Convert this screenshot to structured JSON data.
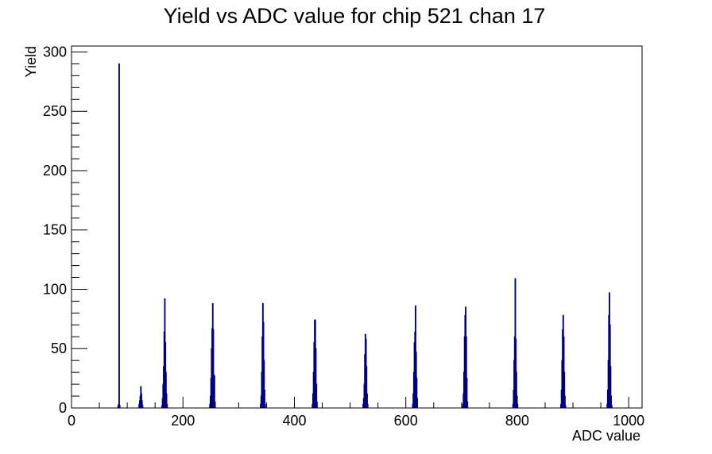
{
  "chart_data": {
    "type": "bar",
    "title": "Yield vs ADC value for chip 521 chan 17",
    "xlabel": "ADC value",
    "ylabel": "Yield",
    "xlim": [
      0,
      1024
    ],
    "ylim": [
      0,
      305
    ],
    "x_ticks": [
      0,
      200,
      400,
      600,
      800,
      1000
    ],
    "y_ticks": [
      0,
      50,
      100,
      150,
      200,
      250,
      300
    ],
    "grid": false,
    "legend": "none",
    "colors": {
      "line": "#000080",
      "frame": "#000000"
    },
    "series": [
      {
        "points": [
          [
            83,
            1
          ],
          [
            84,
            3
          ],
          [
            85,
            290
          ],
          [
            86,
            2
          ],
          [
            121,
            3
          ],
          [
            122,
            6
          ],
          [
            123,
            10
          ],
          [
            124,
            18
          ],
          [
            125,
            12
          ],
          [
            126,
            6
          ],
          [
            127,
            2
          ],
          [
            162,
            2
          ],
          [
            163,
            8
          ],
          [
            164,
            20
          ],
          [
            165,
            35
          ],
          [
            166,
            64
          ],
          [
            167,
            92
          ],
          [
            168,
            55
          ],
          [
            169,
            30
          ],
          [
            170,
            12
          ],
          [
            171,
            3
          ],
          [
            248,
            3
          ],
          [
            249,
            10
          ],
          [
            250,
            25
          ],
          [
            251,
            50
          ],
          [
            252,
            67
          ],
          [
            253,
            88
          ],
          [
            254,
            66
          ],
          [
            255,
            28
          ],
          [
            256,
            27
          ],
          [
            257,
            5
          ],
          [
            339,
            3
          ],
          [
            340,
            10
          ],
          [
            341,
            30
          ],
          [
            342,
            60
          ],
          [
            343,
            88
          ],
          [
            344,
            72
          ],
          [
            345,
            40
          ],
          [
            346,
            15
          ],
          [
            347,
            3
          ],
          [
            432,
            3
          ],
          [
            433,
            12
          ],
          [
            434,
            30
          ],
          [
            435,
            55
          ],
          [
            436,
            74
          ],
          [
            437,
            74
          ],
          [
            438,
            50
          ],
          [
            439,
            20
          ],
          [
            440,
            5
          ],
          [
            523,
            3
          ],
          [
            524,
            8
          ],
          [
            525,
            20
          ],
          [
            526,
            45
          ],
          [
            527,
            62
          ],
          [
            528,
            58
          ],
          [
            529,
            35
          ],
          [
            530,
            12
          ],
          [
            531,
            3
          ],
          [
            612,
            3
          ],
          [
            613,
            12
          ],
          [
            614,
            30
          ],
          [
            615,
            55
          ],
          [
            616,
            64
          ],
          [
            617,
            86
          ],
          [
            618,
            47
          ],
          [
            619,
            25
          ],
          [
            620,
            8
          ],
          [
            702,
            3
          ],
          [
            703,
            12
          ],
          [
            704,
            30
          ],
          [
            705,
            60
          ],
          [
            706,
            78
          ],
          [
            707,
            85
          ],
          [
            708,
            60
          ],
          [
            709,
            25
          ],
          [
            710,
            5
          ],
          [
            792,
            3
          ],
          [
            793,
            15
          ],
          [
            794,
            40
          ],
          [
            795,
            60
          ],
          [
            796,
            109
          ],
          [
            797,
            58
          ],
          [
            798,
            30
          ],
          [
            799,
            10
          ],
          [
            800,
            3
          ],
          [
            878,
            3
          ],
          [
            879,
            15
          ],
          [
            880,
            40
          ],
          [
            881,
            66
          ],
          [
            882,
            78
          ],
          [
            883,
            60
          ],
          [
            884,
            30
          ],
          [
            885,
            10
          ],
          [
            886,
            2
          ],
          [
            961,
            3
          ],
          [
            962,
            15
          ],
          [
            963,
            40
          ],
          [
            964,
            78
          ],
          [
            965,
            97
          ],
          [
            966,
            70
          ],
          [
            967,
            35
          ],
          [
            968,
            10
          ],
          [
            969,
            2
          ]
        ]
      }
    ]
  }
}
